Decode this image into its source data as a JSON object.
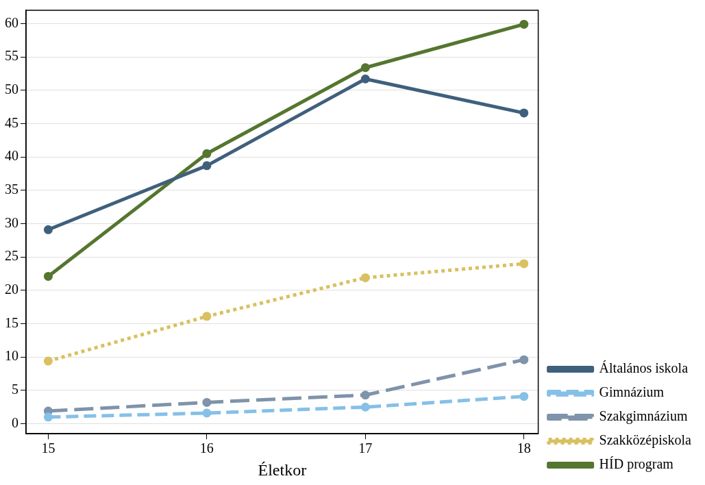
{
  "chart_data": {
    "type": "line",
    "xlabel": "Életkor",
    "x": [
      15,
      16,
      17,
      18
    ],
    "xlim": [
      14.86,
      18.09
    ],
    "xticks": [
      15,
      16,
      17,
      18
    ],
    "ylim": [
      -1.5,
      62
    ],
    "yticks": [
      0,
      5,
      10,
      15,
      20,
      25,
      30,
      35,
      40,
      45,
      50,
      55,
      60
    ],
    "grid": "y",
    "legend": "right",
    "marker": "circle",
    "series": [
      {
        "name": "Általános iskola",
        "color": "#3f607c",
        "line_style": "solid",
        "values": [
          29.1,
          38.7,
          51.7,
          46.6
        ]
      },
      {
        "name": "Gimnázium",
        "color": "#85c0e8",
        "line_style": "dashed",
        "values": [
          1.0,
          1.6,
          2.5,
          4.1
        ]
      },
      {
        "name": "Szakgimnázium",
        "color": "#7f93aa",
        "line_style": "dashed",
        "values": [
          1.9,
          3.2,
          4.3,
          9.6
        ]
      },
      {
        "name": "Szakközépiskola",
        "color": "#d9c060",
        "line_style": "dotted",
        "values": [
          9.4,
          16.1,
          21.9,
          24.0
        ]
      },
      {
        "name": "HÍD program",
        "color": "#54762f",
        "line_style": "solid",
        "values": [
          22.1,
          40.5,
          53.4,
          59.9
        ]
      }
    ]
  }
}
